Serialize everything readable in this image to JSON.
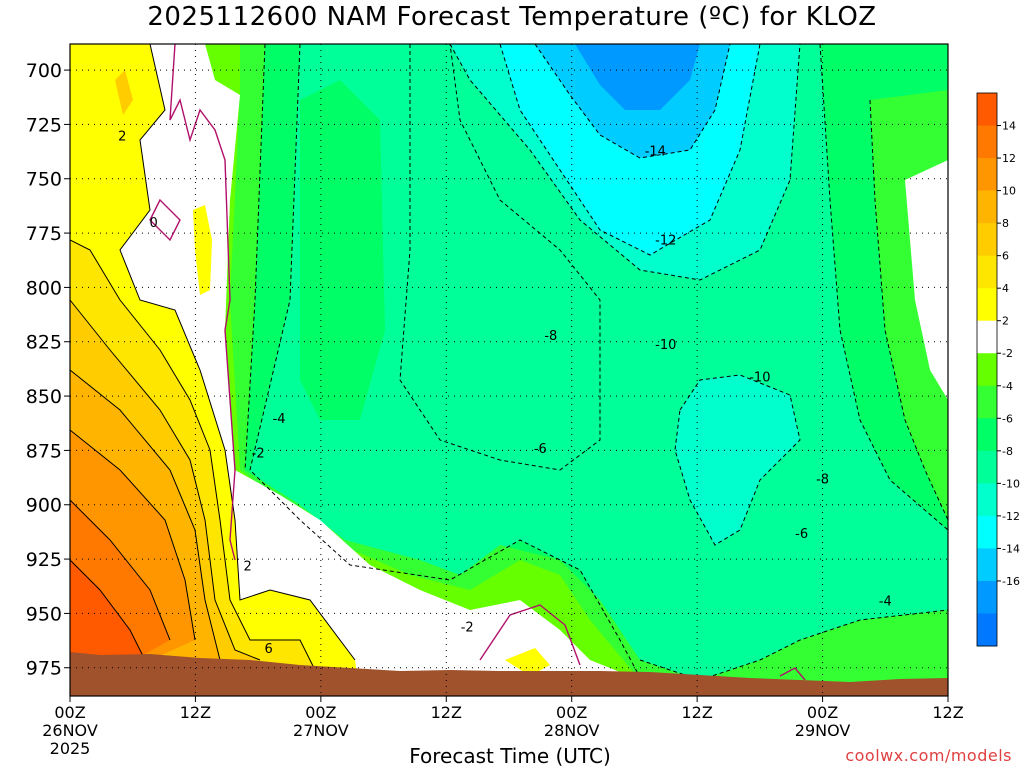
{
  "title": "2025112600 NAM Forecast Temperature (ºC) for KLOZ",
  "xlabel": "Forecast Time (UTC)",
  "credit": "coolwx.com/models",
  "chart_data": {
    "type": "heatmap",
    "title": "2025112600 NAM Forecast Temperature (ºC) for KLOZ",
    "xlabel": "Forecast Time (UTC)",
    "ylabel": "",
    "x_ticks": [
      {
        "hour": 0,
        "label": [
          "00Z",
          "26NOV",
          "2025"
        ]
      },
      {
        "hour": 12,
        "label": [
          "12Z"
        ]
      },
      {
        "hour": 24,
        "label": [
          "00Z",
          "27NOV"
        ]
      },
      {
        "hour": 36,
        "label": [
          "12Z"
        ]
      },
      {
        "hour": 48,
        "label": [
          "00Z",
          "28NOV"
        ]
      },
      {
        "hour": 60,
        "label": [
          "12Z"
        ]
      },
      {
        "hour": 72,
        "label": [
          "00Z",
          "29NOV"
        ]
      },
      {
        "hour": 84,
        "label": [
          "12Z"
        ]
      }
    ],
    "xlim": [
      0,
      84
    ],
    "y_ticks": [
      700,
      725,
      750,
      775,
      800,
      825,
      850,
      875,
      900,
      925,
      950,
      975
    ],
    "ylim": [
      688,
      988
    ],
    "colorbar": {
      "labels": [
        "14",
        "12",
        "10",
        "8",
        "6",
        "4",
        "2",
        "-2",
        "-4",
        "-6",
        "-8",
        "-10",
        "-12",
        "-14",
        "-16"
      ],
      "colors": [
        "#ff5a00",
        "#ff7800",
        "#ff9600",
        "#ffb400",
        "#ffcc00",
        "#ffe600",
        "#ffff00",
        "#ffffff",
        "#66ff00",
        "#33ff33",
        "#00ff66",
        "#00ff99",
        "#00ffcc",
        "#00ffff",
        "#00ccff",
        "#0099ff",
        "#0078ff"
      ]
    },
    "contour_labels": [
      {
        "text": "2",
        "hour": 5,
        "p": 730
      },
      {
        "text": "0",
        "hour": 8,
        "p": 770
      },
      {
        "text": "-14",
        "hour": 56,
        "p": 737
      },
      {
        "text": "-12",
        "hour": 57,
        "p": 778
      },
      {
        "text": "-8",
        "hour": 46,
        "p": 822
      },
      {
        "text": "-10",
        "hour": 57,
        "p": 826
      },
      {
        "text": "-10",
        "hour": 66,
        "p": 841
      },
      {
        "text": "-4",
        "hour": 20,
        "p": 860
      },
      {
        "text": "-2",
        "hour": 18,
        "p": 876
      },
      {
        "text": "-6",
        "hour": 45,
        "p": 874
      },
      {
        "text": "-8",
        "hour": 72,
        "p": 888
      },
      {
        "text": "-6",
        "hour": 70,
        "p": 913
      },
      {
        "text": "2",
        "hour": 17,
        "p": 928
      },
      {
        "text": "-4",
        "hour": 78,
        "p": 944
      },
      {
        "text": "-2",
        "hour": 38,
        "p": 956
      },
      {
        "text": "6",
        "hour": 19,
        "p": 966
      }
    ],
    "grid": true
  }
}
